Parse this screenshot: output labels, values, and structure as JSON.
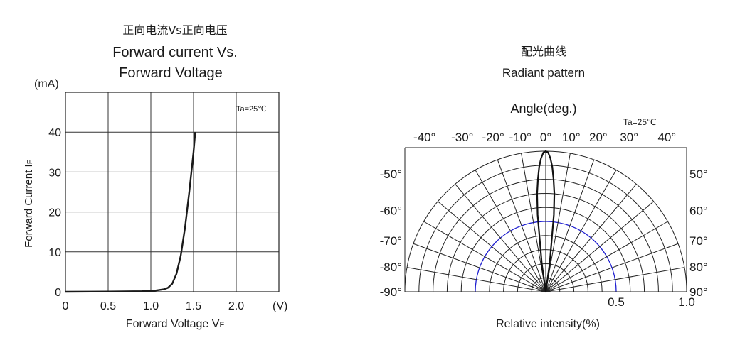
{
  "chart_data": [
    {
      "type": "line",
      "title_cn": "正向电流Vs正向电压",
      "title_line1": "Forward current Vs.",
      "title_line2": "Forward Voltage",
      "y_unit": "(mA)",
      "x_unit": "(V)",
      "ylabel": "Forward Current I",
      "ylabel_sub": "F",
      "xlabel": "Forward Voltage V",
      "xlabel_sub": "F",
      "annotation": "Ta=25℃",
      "xlim": [
        0,
        2.5
      ],
      "ylim": [
        0,
        50
      ],
      "x_ticks": [
        "0",
        "0.5",
        "1.0",
        "1.5",
        "2.0"
      ],
      "y_ticks": [
        "0",
        "10",
        "20",
        "30",
        "40"
      ],
      "grid": true,
      "series": [
        {
          "x": [
            0,
            0.5,
            0.9,
            1.05,
            1.15,
            1.2,
            1.25,
            1.3,
            1.35,
            1.4,
            1.45,
            1.5,
            1.52
          ],
          "y": [
            0,
            0.05,
            0.15,
            0.3,
            0.6,
            1.0,
            2.0,
            4.5,
            9.0,
            16.0,
            25.0,
            35.0,
            40.0
          ]
        }
      ]
    },
    {
      "type": "polar",
      "title_cn": "配光曲线",
      "title": "Radiant pattern",
      "angle_label": "Angle(deg.)",
      "annotation": "Ta=25℃",
      "xlabel": "Relative intensity(%)",
      "top_angle_labels": [
        "-40°",
        "-30°",
        "-20°",
        "-10°",
        "0°",
        "10°",
        "20°",
        "30°",
        "40°"
      ],
      "left_angle_labels": [
        "-50°",
        "-60°",
        "-70°",
        "-80°",
        "-90°"
      ],
      "right_angle_labels": [
        "50°",
        "60°",
        "70°",
        "80°",
        "90°"
      ],
      "intensity_labels": [
        "0.5",
        "1.0"
      ],
      "highlight_ring": 0.5,
      "highlight_color": "#1f1fd0",
      "series": [
        {
          "angles": [
            -10,
            -8,
            -6,
            -5,
            -4,
            -3,
            -2,
            -1,
            0,
            1,
            2,
            3,
            4,
            5,
            6,
            8,
            10
          ],
          "intensity": [
            0,
            0.2,
            0.55,
            0.7,
            0.8,
            0.89,
            0.95,
            0.99,
            1.0,
            0.99,
            0.95,
            0.89,
            0.8,
            0.7,
            0.55,
            0.2,
            0
          ]
        }
      ]
    }
  ]
}
